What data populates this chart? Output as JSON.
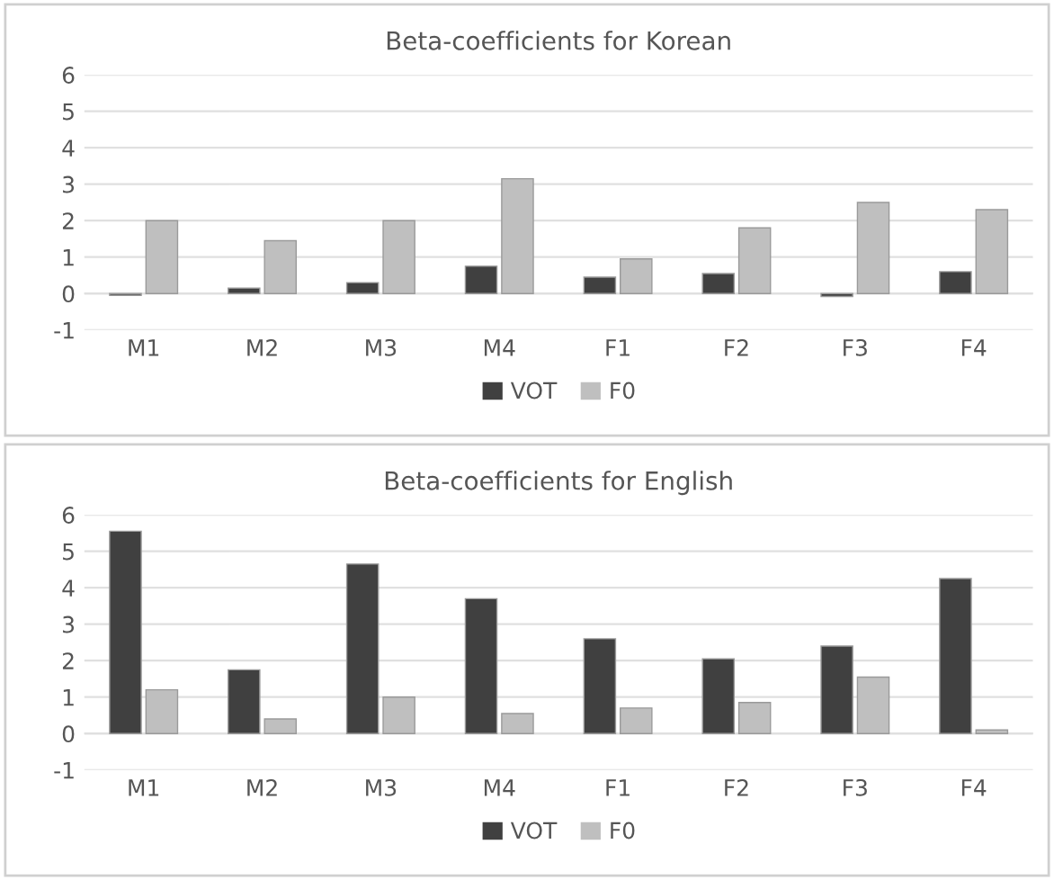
{
  "chart_data": [
    {
      "type": "bar",
      "title": "Beta-coefficients for Korean",
      "categories": [
        "M1",
        "M2",
        "M3",
        "M4",
        "F1",
        "F2",
        "F3",
        "F4"
      ],
      "series": [
        {
          "name": "VOT",
          "color": "#404040",
          "values": [
            -0.05,
            0.15,
            0.3,
            0.75,
            0.45,
            0.55,
            -0.08,
            0.6
          ]
        },
        {
          "name": "F0",
          "color": "#bfbfbf",
          "values": [
            2.0,
            1.45,
            2.0,
            3.15,
            0.95,
            1.8,
            2.5,
            2.3
          ]
        }
      ],
      "ylim": [
        -1,
        6
      ],
      "yticks": [
        {
          "value": -1,
          "label": "-1"
        },
        0,
        1,
        2,
        3,
        4,
        5,
        6
      ],
      "grid": "y",
      "legend": "bottom"
    },
    {
      "type": "bar",
      "title": "Beta-coefficients for English",
      "categories": [
        "M1",
        "M2",
        "M3",
        "M4",
        "F1",
        "F2",
        "F3",
        "F4"
      ],
      "series": [
        {
          "name": "VOT",
          "color": "#404040",
          "values": [
            5.55,
            1.75,
            4.65,
            3.7,
            2.6,
            2.05,
            2.4,
            4.25
          ]
        },
        {
          "name": "F0",
          "color": "#bfbfbf",
          "values": [
            1.2,
            0.4,
            1.0,
            0.55,
            0.7,
            0.85,
            1.55,
            0.1
          ]
        }
      ],
      "ylim": [
        -1,
        6
      ],
      "yticks": [
        {
          "value": -1,
          "label": "-1"
        },
        0,
        1,
        2,
        3,
        4,
        5,
        6
      ],
      "grid": "y",
      "legend": "bottom"
    }
  ]
}
